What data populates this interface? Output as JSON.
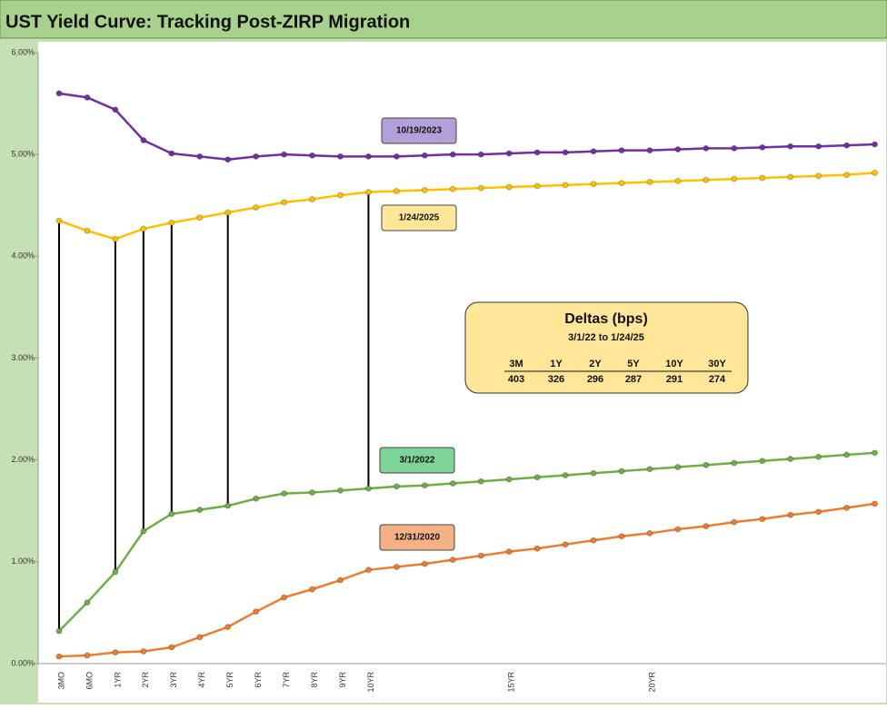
{
  "chart_data": {
    "type": "line",
    "title": "UST Yield Curve: Tracking Post-ZIRP Migration",
    "categories": [
      "3MO",
      "6MO",
      "1YR",
      "2YR",
      "3YR",
      "4YR",
      "5YR",
      "6YR",
      "7YR",
      "8YR",
      "9YR",
      "10YR",
      null,
      null,
      null,
      null,
      "15YR",
      null,
      null,
      null,
      null,
      "20YR",
      null,
      null,
      null,
      null,
      null,
      null,
      null,
      null
    ],
    "series": [
      {
        "name": "10/19/2023",
        "color": "#7030a0",
        "label_color": "#b4a0d8",
        "values": [
          5.6,
          5.56,
          5.44,
          5.14,
          5.01,
          4.98,
          4.95,
          4.98,
          5.0,
          4.99,
          4.98,
          4.98,
          4.98,
          4.99,
          5.0,
          5.0,
          5.01,
          5.02,
          5.02,
          5.03,
          5.04,
          5.04,
          5.05,
          5.06,
          5.06,
          5.07,
          5.08,
          5.08,
          5.09,
          5.1
        ]
      },
      {
        "name": "1/24/2025",
        "color": "#ffc000",
        "label_color": "#ffe699",
        "values": [
          4.35,
          4.25,
          4.17,
          4.27,
          4.33,
          4.38,
          4.43,
          4.48,
          4.53,
          4.56,
          4.6,
          4.63,
          4.64,
          4.65,
          4.66,
          4.67,
          4.68,
          4.69,
          4.7,
          4.71,
          4.72,
          4.73,
          4.74,
          4.75,
          4.76,
          4.77,
          4.78,
          4.79,
          4.8,
          4.82
        ]
      },
      {
        "name": "3/1/2022",
        "color": "#70ad47",
        "label_color": "#7fd49a",
        "values": [
          0.32,
          0.6,
          0.9,
          1.3,
          1.47,
          1.51,
          1.55,
          1.62,
          1.67,
          1.68,
          1.7,
          1.72,
          1.74,
          1.75,
          1.77,
          1.79,
          1.81,
          1.83,
          1.85,
          1.87,
          1.89,
          1.91,
          1.93,
          1.95,
          1.97,
          1.99,
          2.01,
          2.03,
          2.05,
          2.07
        ]
      },
      {
        "name": "12/31/2020",
        "color": "#ed7d31",
        "label_color": "#f4b183",
        "values": [
          0.07,
          0.08,
          0.11,
          0.12,
          0.16,
          0.26,
          0.36,
          0.51,
          0.65,
          0.73,
          0.82,
          0.92,
          0.95,
          0.98,
          1.02,
          1.06,
          1.1,
          1.13,
          1.17,
          1.21,
          1.25,
          1.28,
          1.32,
          1.35,
          1.39,
          1.42,
          1.46,
          1.49,
          1.53,
          1.57
        ]
      }
    ],
    "ylim": [
      0,
      6
    ],
    "yticks": [
      {
        "value": 0,
        "label": "0.00%"
      },
      {
        "value": 1,
        "label": "1.00%"
      },
      {
        "value": 2,
        "label": "2.00%"
      },
      {
        "value": 3,
        "label": "3.00%"
      },
      {
        "value": 4,
        "label": "4.00%"
      },
      {
        "value": 5,
        "label": "5.00%"
      },
      {
        "value": 6,
        "label": "6.00%"
      }
    ],
    "annotation": {
      "title": "Deltas (bps)",
      "subtitle": "3/1/22  to 1/24/25",
      "columns": [
        "3M",
        "1Y",
        "2Y",
        "5Y",
        "10Y",
        "30Y"
      ],
      "values": [
        403,
        326,
        296,
        287,
        291,
        274
      ]
    }
  }
}
